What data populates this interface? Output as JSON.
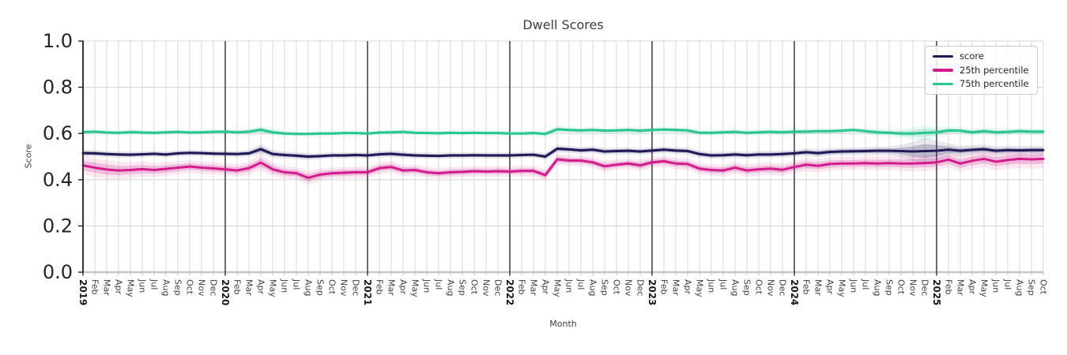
{
  "chart_data": {
    "type": "line",
    "title": "Dwell Scores",
    "xlabel": "Month",
    "ylabel": "Score",
    "ylim": [
      0.0,
      1.0
    ],
    "yticks": [
      0.0,
      0.2,
      0.4,
      0.6,
      0.8,
      1.0
    ],
    "grid": true,
    "legend_position": "upper right",
    "x_labels": [
      "2019",
      "Feb",
      "Mar",
      "Apr",
      "May",
      "Jun",
      "Jul",
      "Aug",
      "Sep",
      "Oct",
      "Nov",
      "Dec",
      "2020",
      "Feb",
      "Mar",
      "Apr",
      "May",
      "Jun",
      "Jul",
      "Aug",
      "Sep",
      "Oct",
      "Nov",
      "Dec",
      "2021",
      "Feb",
      "Mar",
      "Apr",
      "May",
      "Jun",
      "Jul",
      "Aug",
      "Sep",
      "Oct",
      "Nov",
      "Dec",
      "2022",
      "Feb",
      "Mar",
      "Apr",
      "May",
      "Jun",
      "Jul",
      "Aug",
      "Sep",
      "Oct",
      "Nov",
      "Dec",
      "2023",
      "Feb",
      "Mar",
      "Apr",
      "May",
      "Jun",
      "Jul",
      "Aug",
      "Sep",
      "Oct",
      "Nov",
      "Dec",
      "2024",
      "Feb",
      "Mar",
      "Apr",
      "May",
      "Jun",
      "Jul",
      "Aug",
      "Sep",
      "Oct",
      "Nov",
      "Dec",
      "2025",
      "Feb",
      "Mar",
      "Apr",
      "May",
      "Jun",
      "Jul",
      "Aug",
      "Sep",
      "Oct"
    ],
    "year_tick_indices": [
      0,
      12,
      24,
      36,
      48,
      60,
      72
    ],
    "series": [
      {
        "name": "score",
        "color": "#1e1b58",
        "values": [
          0.515,
          0.514,
          0.511,
          0.509,
          0.508,
          0.51,
          0.512,
          0.509,
          0.514,
          0.516,
          0.515,
          0.513,
          0.512,
          0.511,
          0.514,
          0.532,
          0.511,
          0.507,
          0.504,
          0.5,
          0.502,
          0.505,
          0.505,
          0.507,
          0.505,
          0.51,
          0.512,
          0.508,
          0.505,
          0.504,
          0.503,
          0.505,
          0.505,
          0.506,
          0.505,
          0.505,
          0.505,
          0.507,
          0.508,
          0.5,
          0.534,
          0.531,
          0.527,
          0.53,
          0.522,
          0.524,
          0.525,
          0.522,
          0.526,
          0.53,
          0.526,
          0.524,
          0.511,
          0.505,
          0.506,
          0.509,
          0.506,
          0.509,
          0.509,
          0.511,
          0.514,
          0.519,
          0.515,
          0.52,
          0.522,
          0.523,
          0.524,
          0.525,
          0.525,
          0.524,
          0.522,
          0.524,
          0.525,
          0.53,
          0.525,
          0.529,
          0.532,
          0.525,
          0.528,
          0.527,
          0.528,
          0.528
        ],
        "band": [
          0.008,
          0.008,
          0.007,
          0.007,
          0.007,
          0.007,
          0.007,
          0.007,
          0.007,
          0.007,
          0.007,
          0.007,
          0.007,
          0.007,
          0.008,
          0.012,
          0.009,
          0.008,
          0.008,
          0.008,
          0.007,
          0.007,
          0.007,
          0.007,
          0.007,
          0.008,
          0.008,
          0.008,
          0.007,
          0.007,
          0.007,
          0.007,
          0.007,
          0.007,
          0.007,
          0.007,
          0.007,
          0.007,
          0.007,
          0.008,
          0.009,
          0.008,
          0.008,
          0.008,
          0.008,
          0.008,
          0.008,
          0.008,
          0.008,
          0.008,
          0.008,
          0.008,
          0.008,
          0.008,
          0.008,
          0.008,
          0.008,
          0.008,
          0.008,
          0.008,
          0.008,
          0.009,
          0.009,
          0.009,
          0.009,
          0.009,
          0.009,
          0.01,
          0.01,
          0.014,
          0.022,
          0.03,
          0.024,
          0.014,
          0.012,
          0.011,
          0.011,
          0.01,
          0.01,
          0.01,
          0.01,
          0.01
        ]
      },
      {
        "name": "25th percentile",
        "color": "#d21b8c",
        "values": [
          0.462,
          0.452,
          0.444,
          0.44,
          0.442,
          0.446,
          0.442,
          0.447,
          0.452,
          0.457,
          0.452,
          0.449,
          0.445,
          0.44,
          0.45,
          0.474,
          0.445,
          0.432,
          0.428,
          0.408,
          0.422,
          0.428,
          0.43,
          0.432,
          0.432,
          0.45,
          0.455,
          0.44,
          0.442,
          0.432,
          0.428,
          0.432,
          0.434,
          0.437,
          0.435,
          0.437,
          0.435,
          0.438,
          0.438,
          0.42,
          0.488,
          0.483,
          0.483,
          0.475,
          0.458,
          0.465,
          0.47,
          0.462,
          0.475,
          0.48,
          0.47,
          0.468,
          0.448,
          0.442,
          0.44,
          0.452,
          0.44,
          0.445,
          0.448,
          0.443,
          0.455,
          0.465,
          0.46,
          0.468,
          0.47,
          0.47,
          0.472,
          0.47,
          0.472,
          0.47,
          0.47,
          0.472,
          0.475,
          0.487,
          0.47,
          0.482,
          0.49,
          0.478,
          0.485,
          0.49,
          0.488,
          0.49
        ],
        "band": [
          0.02,
          0.022,
          0.022,
          0.02,
          0.018,
          0.018,
          0.016,
          0.016,
          0.015,
          0.014,
          0.014,
          0.014,
          0.014,
          0.014,
          0.015,
          0.018,
          0.016,
          0.014,
          0.014,
          0.016,
          0.014,
          0.013,
          0.013,
          0.013,
          0.013,
          0.014,
          0.013,
          0.013,
          0.012,
          0.012,
          0.012,
          0.012,
          0.012,
          0.012,
          0.012,
          0.012,
          0.012,
          0.012,
          0.012,
          0.013,
          0.013,
          0.012,
          0.012,
          0.012,
          0.013,
          0.012,
          0.012,
          0.013,
          0.013,
          0.013,
          0.013,
          0.013,
          0.013,
          0.013,
          0.013,
          0.014,
          0.014,
          0.014,
          0.014,
          0.014,
          0.014,
          0.015,
          0.015,
          0.015,
          0.015,
          0.015,
          0.015,
          0.016,
          0.016,
          0.017,
          0.018,
          0.018,
          0.018,
          0.018,
          0.019,
          0.019,
          0.019,
          0.02,
          0.02,
          0.021,
          0.021,
          0.022
        ]
      },
      {
        "name": "75th percentile",
        "color": "#2bc592",
        "values": [
          0.606,
          0.608,
          0.604,
          0.603,
          0.606,
          0.604,
          0.603,
          0.605,
          0.607,
          0.604,
          0.605,
          0.607,
          0.608,
          0.605,
          0.608,
          0.616,
          0.605,
          0.6,
          0.598,
          0.598,
          0.6,
          0.6,
          0.602,
          0.602,
          0.6,
          0.604,
          0.605,
          0.607,
          0.603,
          0.602,
          0.601,
          0.603,
          0.602,
          0.603,
          0.602,
          0.602,
          0.6,
          0.6,
          0.602,
          0.598,
          0.618,
          0.615,
          0.613,
          0.615,
          0.612,
          0.613,
          0.615,
          0.612,
          0.615,
          0.617,
          0.615,
          0.613,
          0.603,
          0.603,
          0.605,
          0.607,
          0.603,
          0.605,
          0.607,
          0.605,
          0.608,
          0.608,
          0.61,
          0.61,
          0.612,
          0.615,
          0.61,
          0.605,
          0.603,
          0.6,
          0.6,
          0.603,
          0.605,
          0.613,
          0.612,
          0.605,
          0.61,
          0.605,
          0.607,
          0.61,
          0.608,
          0.608
        ],
        "band": [
          0.006,
          0.006,
          0.006,
          0.006,
          0.006,
          0.006,
          0.006,
          0.006,
          0.006,
          0.006,
          0.006,
          0.006,
          0.006,
          0.006,
          0.007,
          0.01,
          0.008,
          0.007,
          0.006,
          0.006,
          0.006,
          0.006,
          0.006,
          0.006,
          0.006,
          0.006,
          0.006,
          0.006,
          0.006,
          0.006,
          0.006,
          0.006,
          0.006,
          0.006,
          0.006,
          0.006,
          0.006,
          0.006,
          0.006,
          0.007,
          0.008,
          0.007,
          0.007,
          0.007,
          0.007,
          0.007,
          0.007,
          0.007,
          0.007,
          0.007,
          0.007,
          0.007,
          0.007,
          0.007,
          0.007,
          0.007,
          0.007,
          0.007,
          0.007,
          0.007,
          0.007,
          0.007,
          0.007,
          0.007,
          0.007,
          0.007,
          0.007,
          0.008,
          0.008,
          0.01,
          0.014,
          0.018,
          0.012,
          0.009,
          0.008,
          0.008,
          0.008,
          0.008,
          0.008,
          0.008,
          0.008,
          0.008
        ]
      }
    ],
    "style": {
      "gridline_color": "#dadada",
      "year_line_color": "#2e2e2e",
      "left_spine_color": "#262626",
      "bottom_spine_color": "#c6c6c6",
      "tick_label_color": "#262626",
      "month_label_color": "#3d3d3d",
      "year_label_color": "#1a1a1a",
      "title_color": "#3d3d3d"
    }
  }
}
